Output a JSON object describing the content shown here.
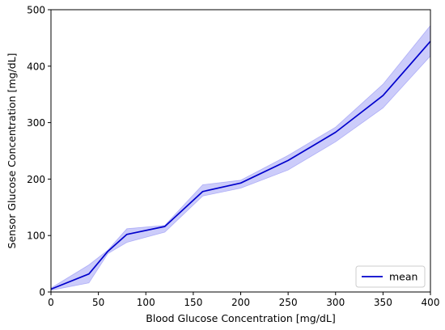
{
  "chart_data": {
    "type": "line",
    "xlabel": "Blood Glucose Concentration [mg/dL]",
    "ylabel": "Sensor Glucose Concentration [mg/dL]",
    "xlim": [
      0,
      400
    ],
    "ylim": [
      0,
      500
    ],
    "xticks": [
      "0",
      "50",
      "100",
      "150",
      "200",
      "250",
      "300",
      "350",
      "400"
    ],
    "yticks": [
      "0",
      "100",
      "200",
      "300",
      "400",
      "500"
    ],
    "grid": false,
    "legend_position": "lower-right",
    "series": [
      {
        "name": "mean",
        "color": "#0000cc",
        "band_color": "#6464f0",
        "x": [
          0,
          40,
          60,
          80,
          120,
          160,
          200,
          250,
          300,
          350,
          400
        ],
        "values": [
          5,
          32,
          72,
          102,
          116,
          178,
          193,
          233,
          283,
          348,
          444
        ],
        "lower": [
          3,
          16,
          68,
          88,
          106,
          170,
          184,
          216,
          266,
          326,
          418
        ],
        "upper": [
          7,
          48,
          74,
          112,
          118,
          190,
          198,
          242,
          292,
          368,
          472
        ]
      }
    ]
  }
}
